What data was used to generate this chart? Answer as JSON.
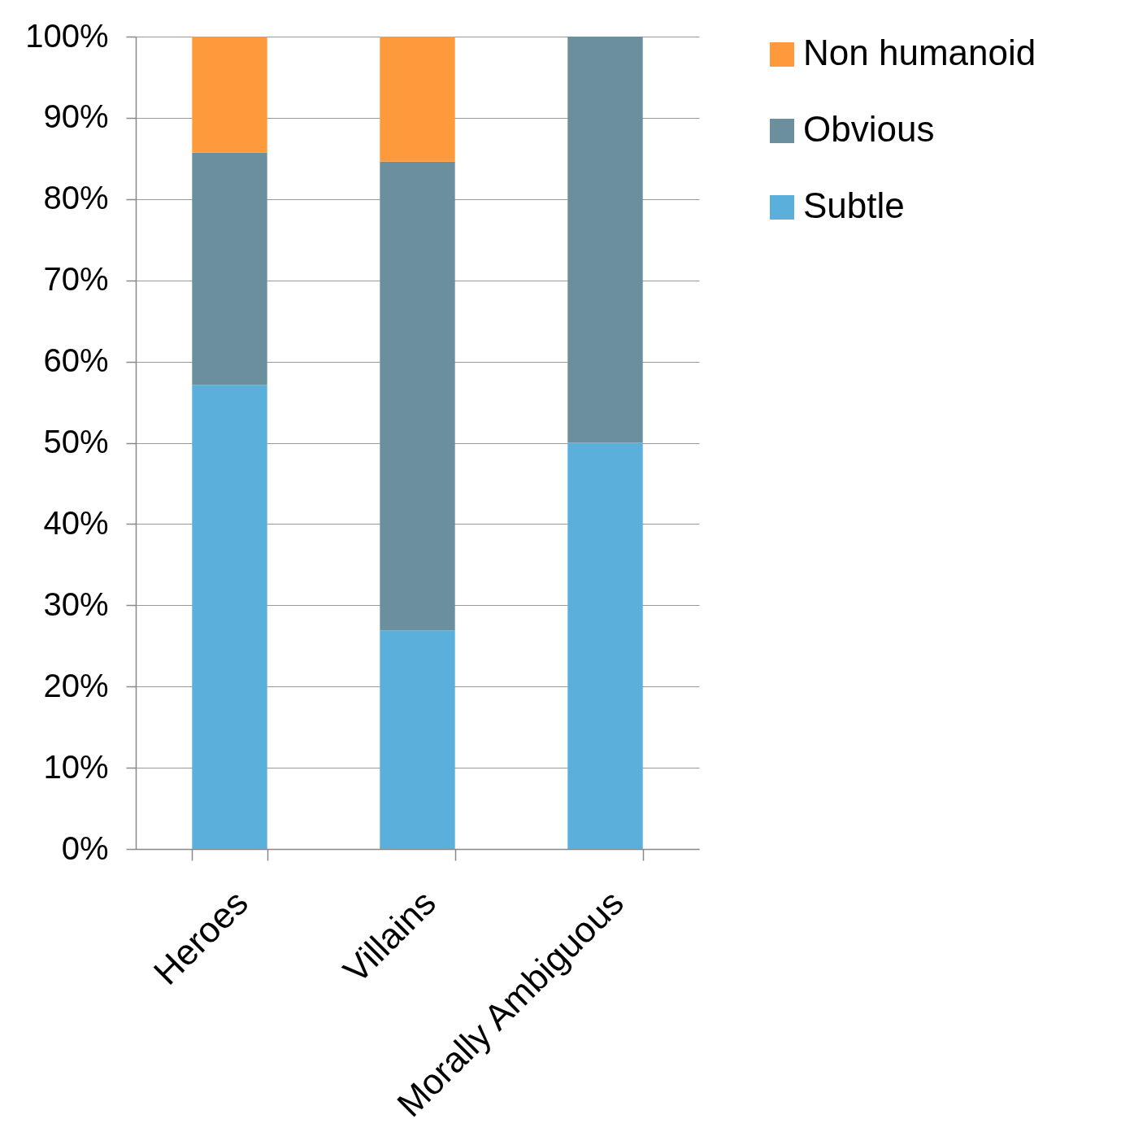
{
  "chart_data": {
    "type": "bar",
    "stacked": true,
    "categories": [
      "Heroes",
      "Villains",
      "Morally Ambiguous"
    ],
    "series": [
      {
        "name": "Subtle",
        "color": "#5ab0da",
        "values": [
          57.1,
          26.9,
          50
        ]
      },
      {
        "name": "Obvious",
        "color": "#6b8f9c",
        "values": [
          28.6,
          57.7,
          50
        ]
      },
      {
        "name": "Non humanoid",
        "color": "#ff9a3c",
        "values": [
          14.3,
          15.4,
          0
        ]
      }
    ],
    "ylim": [
      0,
      100
    ],
    "yticks": [
      {
        "value": 0,
        "label": "0%"
      },
      {
        "value": 10,
        "label": "10%"
      },
      {
        "value": 20,
        "label": "20%"
      },
      {
        "value": 30,
        "label": "30%"
      },
      {
        "value": 40,
        "label": "40%"
      },
      {
        "value": 50,
        "label": "50%"
      },
      {
        "value": 60,
        "label": "60%"
      },
      {
        "value": 70,
        "label": "70%"
      },
      {
        "value": 80,
        "label": "80%"
      },
      {
        "value": 90,
        "label": "90%"
      },
      {
        "value": 100,
        "label": "100%"
      }
    ],
    "grid": "y",
    "legend": "right"
  }
}
